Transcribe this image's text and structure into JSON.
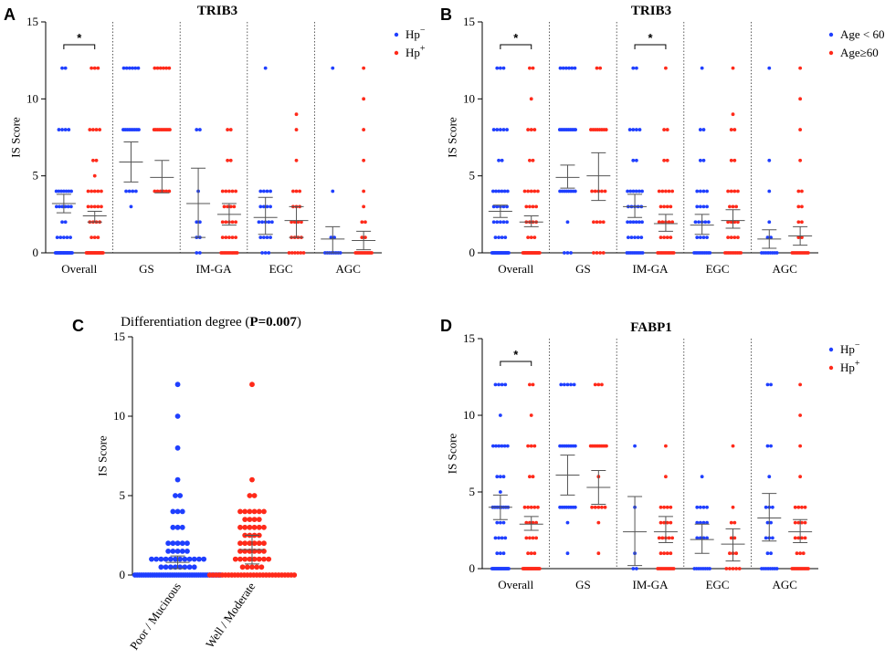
{
  "colors": {
    "blue": "#1f3fff",
    "red": "#ff2a1a",
    "axis": "#000000",
    "bar": "#555555",
    "divider": "#333333"
  },
  "panels": [
    {
      "letter": "A",
      "title": "TRIB3",
      "title_bold": true,
      "ylabel": "IS Score",
      "legend": [
        "Hp",
        "Hp"
      ],
      "legend_sup": [
        "−",
        "+"
      ],
      "sig": [
        {
          "group": 0,
          "label": "*"
        }
      ]
    },
    {
      "letter": "B",
      "title": "TRIB3",
      "title_bold": true,
      "ylabel": "IS Score",
      "legend": [
        "Age < 60",
        "Age≥60"
      ],
      "legend_sup": [
        "",
        ""
      ],
      "sig": [
        {
          "group": 0,
          "label": "*"
        },
        {
          "group": 2,
          "label": "*"
        }
      ]
    },
    {
      "letter": "C",
      "title_prefix": "Differentiation degree (",
      "title_bold_part": "P=0.007",
      "title_suffix": ")",
      "ylabel": "IS Score"
    },
    {
      "letter": "D",
      "title": "FABP1",
      "title_bold": true,
      "ylabel": "IS Score",
      "legend": [
        "Hp",
        "Hp"
      ],
      "legend_sup": [
        "−",
        "+"
      ],
      "sig": [
        {
          "group": 0,
          "label": "*"
        }
      ]
    }
  ],
  "chart_data": [
    {
      "panel": "A",
      "type": "scatter",
      "title": "TRIB3",
      "ylabel": "IS Score",
      "ylim": [
        0,
        15
      ],
      "yticks": [
        0,
        5,
        10,
        15
      ],
      "categories": [
        "Overall",
        "GS",
        "IM-GA",
        "EGC",
        "AGC"
      ],
      "series": [
        {
          "name": "Hp−",
          "color": "blue",
          "points": [
            [
              0,
              24,
              0,
              3,
              1,
              5,
              2,
              2,
              3,
              6,
              4,
              7,
              8,
              4,
              12,
              2
            ],
            [
              4,
              4,
              8,
              9,
              12,
              6,
              3,
              1
            ],
            [
              0,
              2,
              1,
              2,
              2,
              2,
              4,
              1,
              8,
              2
            ],
            [
              0,
              3,
              1,
              4,
              2,
              5,
              3,
              4,
              4,
              4,
              12,
              1
            ],
            [
              0,
              8,
              1,
              2,
              4,
              1,
              12,
              1
            ]
          ],
          "mean": [
            3.2,
            5.9,
            3.2,
            2.3,
            0.9
          ],
          "ci": [
            [
              2.6,
              3.8
            ],
            [
              4.6,
              7.2
            ],
            [
              1.0,
              5.5
            ],
            [
              1.2,
              3.6
            ],
            [
              0.0,
              1.7
            ]
          ]
        },
        {
          "name": "Hp+",
          "color": "red",
          "points": [
            [
              0,
              24,
              1,
              3,
              2,
              4,
              3,
              5,
              4,
              5,
              5,
              1,
              6,
              2,
              8,
              4,
              12,
              3
            ],
            [
              4,
              6,
              8,
              10,
              12,
              6
            ],
            [
              0,
              12,
              1,
              5,
              2,
              5,
              3,
              4,
              4,
              5,
              6,
              2,
              8,
              2
            ],
            [
              0,
              6,
              1,
              4,
              2,
              4,
              3,
              3,
              4,
              3,
              6,
              1,
              8,
              1,
              9,
              1
            ],
            [
              0,
              14,
              1,
              2,
              2,
              2,
              3,
              1,
              4,
              1,
              6,
              1,
              8,
              1,
              10,
              1,
              12,
              1
            ]
          ],
          "mean": [
            2.4,
            4.9,
            2.5,
            2.1,
            0.8
          ],
          "ci": [
            [
              2.0,
              2.7
            ],
            [
              3.9,
              6.0
            ],
            [
              1.8,
              3.2
            ],
            [
              1.0,
              3.0
            ],
            [
              0.2,
              1.4
            ]
          ]
        }
      ]
    },
    {
      "panel": "B",
      "type": "scatter",
      "title": "TRIB3",
      "ylabel": "IS Score",
      "ylim": [
        0,
        15
      ],
      "yticks": [
        0,
        5,
        10,
        15
      ],
      "categories": [
        "Overall",
        "GS",
        "IM-GA",
        "EGC",
        "AGC"
      ],
      "series": [
        {
          "name": "Age < 60",
          "color": "blue",
          "points": [
            [
              0,
              24,
              1,
              4,
              2,
              5,
              3,
              5,
              4,
              6,
              6,
              2,
              8,
              5,
              12,
              3
            ],
            [
              0,
              3,
              2,
              1,
              4,
              8,
              8,
              10,
              12,
              6
            ],
            [
              0,
              10,
              1,
              5,
              2,
              6,
              3,
              5,
              4,
              6,
              6,
              2,
              8,
              4,
              12,
              2
            ],
            [
              0,
              10,
              1,
              4,
              2,
              5,
              3,
              4,
              4,
              4,
              6,
              2,
              8,
              2,
              12,
              1
            ],
            [
              0,
              8,
              1,
              2,
              2,
              1,
              4,
              1,
              6,
              1,
              12,
              1
            ]
          ],
          "mean": [
            2.7,
            4.9,
            3.0,
            1.8,
            0.9
          ],
          "ci": [
            [
              2.3,
              3.1
            ],
            [
              4.2,
              5.7
            ],
            [
              2.3,
              3.8
            ],
            [
              1.2,
              2.5
            ],
            [
              0.3,
              1.5
            ]
          ]
        },
        {
          "name": "Age≥60",
          "color": "red",
          "points": [
            [
              0,
              24,
              1,
              3,
              2,
              4,
              3,
              4,
              4,
              5,
              6,
              2,
              8,
              3,
              10,
              1,
              12,
              2
            ],
            [
              0,
              4,
              2,
              4,
              4,
              5,
              8,
              8,
              12,
              2
            ],
            [
              0,
              12,
              1,
              4,
              2,
              5,
              3,
              4,
              4,
              5,
              6,
              2,
              8,
              2,
              12,
              1
            ],
            [
              0,
              10,
              1,
              4,
              2,
              4,
              3,
              3,
              4,
              4,
              6,
              2,
              8,
              2,
              9,
              1,
              12,
              1
            ],
            [
              0,
              12,
              1,
              2,
              2,
              2,
              3,
              2,
              4,
              2,
              6,
              1,
              8,
              1,
              10,
              1,
              12,
              1
            ]
          ],
          "mean": [
            2.0,
            5.0,
            1.9,
            2.1,
            1.1
          ],
          "ci": [
            [
              1.7,
              2.4
            ],
            [
              3.4,
              6.5
            ],
            [
              1.4,
              2.5
            ],
            [
              1.6,
              2.8
            ],
            [
              0.5,
              1.7
            ]
          ]
        }
      ]
    },
    {
      "panel": "C",
      "type": "scatter",
      "title": "Differentiation degree (P=0.007)",
      "ylabel": "IS Score",
      "ylim": [
        0,
        15
      ],
      "yticks": [
        0,
        5,
        10,
        15
      ],
      "categories": [
        "Poor / Mucinous",
        "Well / Moderate"
      ],
      "series": [
        {
          "name": "Poor / Mucinous",
          "color": "blue",
          "points": [
            [
              0,
              40,
              0.5,
              8,
              1,
              12,
              1.5,
              5,
              2,
              5,
              3,
              3,
              4,
              3,
              5,
              2,
              6,
              1,
              8,
              1,
              10,
              1,
              12,
              1
            ]
          ],
          "mean": [
            0.8
          ],
          "ci": [
            [
              0.4,
              1.2
            ]
          ]
        },
        {
          "name": "Well / Moderate",
          "color": "red",
          "points": [
            [
              0,
              28,
              0.5,
              5,
              1,
              8,
              1.5,
              6,
              2,
              6,
              2.5,
              4,
              3,
              6,
              3.5,
              4,
              4,
              6,
              5,
              2,
              6,
              1,
              12,
              1
            ]
          ],
          "mean": [
            1.6
          ],
          "ci": [
            [
              0.7,
              2.5
            ]
          ]
        }
      ]
    },
    {
      "panel": "D",
      "type": "scatter",
      "title": "FABP1",
      "ylabel": "IS Score",
      "ylim": [
        0,
        15
      ],
      "yticks": [
        0,
        5,
        10,
        15
      ],
      "categories": [
        "Overall",
        "GS",
        "IM-GA",
        "EGC",
        "AGC"
      ],
      "series": [
        {
          "name": "Hp−",
          "color": "blue",
          "points": [
            [
              0,
              24,
              1,
              3,
              2,
              4,
              3,
              3,
              4,
              8,
              5,
              1,
              6,
              3,
              8,
              6,
              10,
              1,
              12,
              4
            ],
            [
              1,
              1,
              3,
              1,
              4,
              8,
              8,
              8,
              12,
              5
            ],
            [
              0,
              2,
              1,
              1,
              4,
              1,
              8,
              1
            ],
            [
              0,
              8,
              2,
              4,
              3,
              4,
              4,
              4,
              6,
              1
            ],
            [
              0,
              8,
              1,
              2,
              2,
              3,
              3,
              2,
              4,
              3,
              6,
              1,
              8,
              2,
              12,
              2
            ]
          ],
          "mean": [
            4.0,
            6.1,
            2.4,
            1.9,
            3.3
          ],
          "ci": [
            [
              3.2,
              4.8
            ],
            [
              4.8,
              7.4
            ],
            [
              0.2,
              4.7
            ],
            [
              1.0,
              2.9
            ],
            [
              1.8,
              4.9
            ]
          ]
        },
        {
          "name": "Hp+",
          "color": "red",
          "points": [
            [
              0,
              24,
              1,
              3,
              2,
              4,
              3,
              4,
              4,
              5,
              6,
              2,
              8,
              3,
              10,
              1,
              12,
              2
            ],
            [
              1,
              1,
              3,
              1,
              4,
              5,
              6,
              1,
              8,
              10,
              12,
              3
            ],
            [
              0,
              12,
              1,
              4,
              2,
              5,
              3,
              4,
              4,
              4,
              6,
              1,
              8,
              1
            ],
            [
              0,
              5,
              1,
              3,
              2,
              2,
              3,
              2,
              4,
              1,
              8,
              1
            ],
            [
              0,
              14,
              1,
              3,
              2,
              4,
              3,
              4,
              4,
              4,
              6,
              1,
              8,
              1,
              10,
              1,
              12,
              1
            ]
          ],
          "mean": [
            2.9,
            5.3,
            2.4,
            1.6,
            2.4
          ],
          "ci": [
            [
              2.5,
              3.4
            ],
            [
              4.2,
              6.4
            ],
            [
              1.7,
              3.4
            ],
            [
              0.5,
              2.6
            ],
            [
              1.7,
              3.2
            ]
          ]
        }
      ]
    }
  ]
}
